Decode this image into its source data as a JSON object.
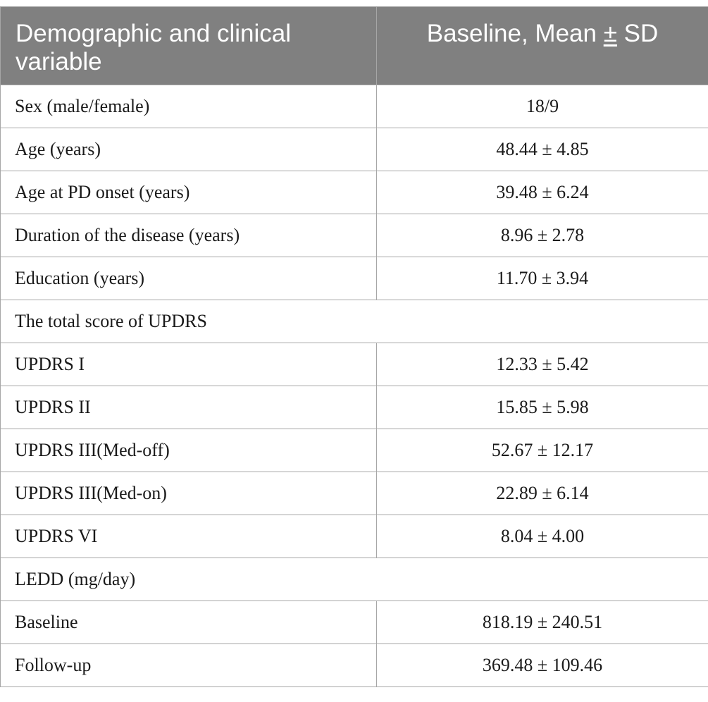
{
  "table": {
    "header": {
      "col1": "Demographic and clinical variable",
      "col2_prefix": "Baseline, Mean ",
      "col2_pm": "±",
      "col2_suffix": " SD"
    },
    "rows": [
      {
        "label": "Sex (male/female)",
        "value": "18/9"
      },
      {
        "label": "Age (years)",
        "value": "48.44 ± 4.85"
      },
      {
        "label": "Age at PD onset (years)",
        "value": "39.48 ± 6.24"
      },
      {
        "label": "Duration of the disease (years)",
        "value": "8.96 ± 2.78"
      },
      {
        "label": "Education (years)",
        "value": "11.70 ± 3.94"
      },
      {
        "label": "The total score of UPDRS",
        "section": true
      },
      {
        "label": "UPDRS I",
        "value": "12.33 ± 5.42"
      },
      {
        "label": "UPDRS II",
        "value": "15.85 ± 5.98"
      },
      {
        "label": "UPDRS III(Med-off)",
        "value": "52.67 ± 12.17"
      },
      {
        "label": "UPDRS III(Med-on)",
        "value": "22.89 ± 6.14"
      },
      {
        "label": "UPDRS VI",
        "value": "8.04 ± 4.00"
      },
      {
        "label": "LEDD (mg/day)",
        "section": true
      },
      {
        "label": "Baseline",
        "value": "818.19 ± 240.51"
      },
      {
        "label": "Follow-up",
        "value": "369.48 ± 109.46"
      }
    ]
  },
  "colors": {
    "header_bg": "#808080",
    "header_text": "#ffffff",
    "border": "#a6a6a6",
    "body_text": "#1a1a1a"
  }
}
